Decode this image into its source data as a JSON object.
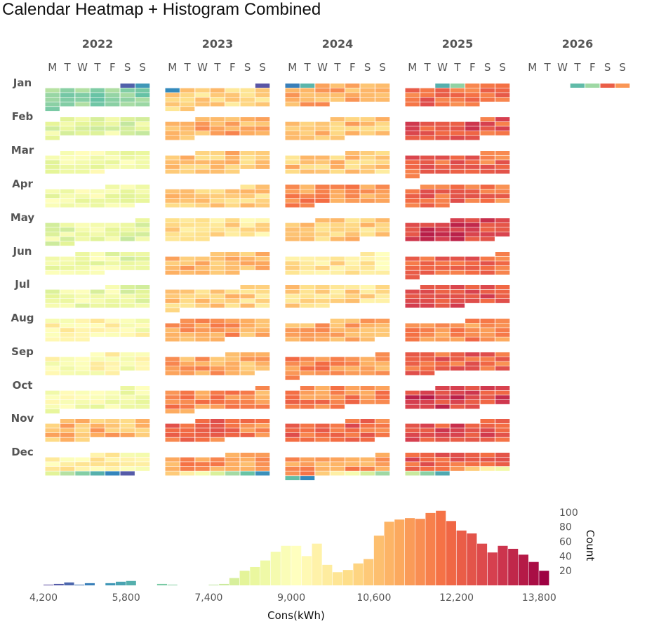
{
  "title": "Calendar Heatmap + Histogram Combined",
  "chart_data": [
    {
      "type": "heatmap",
      "subtype": "calendar",
      "years": [
        "2022",
        "2023",
        "2024",
        "2025",
        "2026"
      ],
      "weekdays": [
        "M",
        "T",
        "W",
        "T",
        "F",
        "S",
        "S"
      ],
      "months": [
        "Jan",
        "Feb",
        "Mar",
        "Apr",
        "May",
        "Jun",
        "Jul",
        "Aug",
        "Sep",
        "Oct",
        "Nov",
        "Dec"
      ],
      "value_unit": "Cons(kWh)",
      "approx_monthly_level": {
        "2022": [
          6800,
          8300,
          8700,
          8700,
          8300,
          8600,
          8500,
          9300,
          9200,
          8800,
          10800,
          9500
        ],
        "2023": [
          10200,
          11000,
          10600,
          10500,
          10000,
          10900,
          10400,
          11200,
          11100,
          11500,
          12000,
          11300
        ],
        "2024": [
          11000,
          10700,
          10500,
          11400,
          10500,
          9900,
          10200,
          11000,
          11500,
          11600,
          12200,
          11300
        ],
        "2025": [
          12000,
          12500,
          12200,
          12100,
          12900,
          12300,
          12800,
          11600,
          12200,
          12900,
          12600,
          12300
        ],
        "2026": [
          11900
        ]
      },
      "approx_monthly_extremes": {
        "2022": {
          "Jan": [
            4600,
            8300
          ],
          "Dec": [
            4500,
            9200
          ]
        },
        "2023": {
          "Jan": [
            4400,
            11200
          ],
          "Dec": [
            5400,
            11600
          ]
        },
        "2024": {
          "Jan": [
            5100,
            12000
          ],
          "Dec": [
            5300,
            12500
          ]
        },
        "2025": {
          "Jan": [
            5900,
            12900
          ],
          "Dec": [
            5800,
            13000
          ]
        },
        "2026": {
          "Jan": [
            6100,
            12400
          ]
        }
      },
      "data_end": "2026-01-04"
    },
    {
      "type": "bar",
      "subtype": "histogram",
      "xlabel": "Cons(kWh)",
      "ylabel": "Count",
      "x_ticks": [
        "4,200",
        "5,800",
        "7,400",
        "9,000",
        "10,600",
        "12,200",
        "13,800"
      ],
      "y_ticks": [
        "20",
        "40",
        "60",
        "80",
        "100"
      ],
      "xlim": [
        4200,
        14000
      ],
      "ylim": [
        0,
        105
      ],
      "bin_width": 200,
      "bins": [
        4300,
        4500,
        4700,
        4900,
        5100,
        5300,
        5500,
        5700,
        5900,
        6100,
        6300,
        6500,
        6700,
        6900,
        7100,
        7300,
        7500,
        7700,
        7900,
        8100,
        8300,
        8500,
        8700,
        8900,
        9100,
        9300,
        9500,
        9700,
        9900,
        10100,
        10300,
        10500,
        10700,
        10900,
        11100,
        11300,
        11500,
        11700,
        11900,
        12100,
        12300,
        12500,
        12700,
        12900,
        13100,
        13300,
        13500,
        13700,
        13900
      ],
      "counts": [
        1,
        2,
        4,
        1,
        3,
        0,
        3,
        5,
        6,
        0,
        0,
        2,
        1,
        0,
        0,
        0,
        1,
        2,
        10,
        20,
        25,
        34,
        46,
        54,
        54,
        40,
        57,
        28,
        18,
        21,
        30,
        36,
        68,
        87,
        90,
        92,
        91,
        99,
        102,
        88,
        75,
        71,
        57,
        45,
        54,
        50,
        42,
        32,
        20
      ],
      "colorscale": [
        "#5e4fa2",
        "#3288bd",
        "#66c2a5",
        "#abdda4",
        "#e6f598",
        "#ffffbf",
        "#fee08b",
        "#fdae61",
        "#f46d43",
        "#d53e4f",
        "#9e0142"
      ]
    }
  ]
}
